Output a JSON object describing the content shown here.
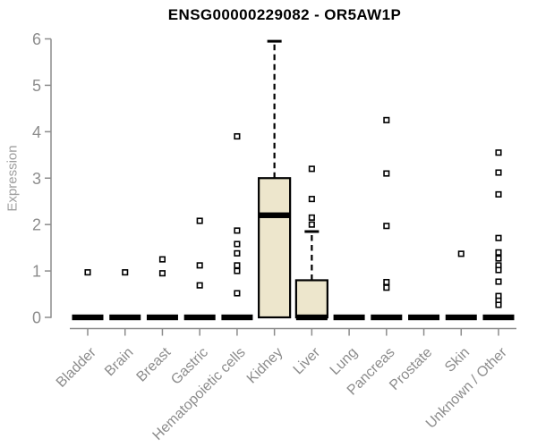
{
  "chart_data": {
    "type": "boxplot",
    "title": "ENSG00000229082 - OR5AW1P",
    "ylabel": "Expression",
    "xlabel": "",
    "ylim": [
      0,
      6
    ],
    "yticks": [
      0,
      1,
      2,
      3,
      4,
      5,
      6
    ],
    "grid": false,
    "legend": false,
    "categories": [
      "Bladder",
      "Brain",
      "Breast",
      "Gastric",
      "Hematopoietic cells",
      "Kidney",
      "Liver",
      "Lung",
      "Pancreas",
      "Prostate",
      "Skin",
      "Unknown / Other"
    ],
    "series": [
      {
        "name": "Bladder",
        "q1": 0,
        "median": 0,
        "q3": 0,
        "whisker_low": 0,
        "whisker_high": 0,
        "outliers": [
          0.97
        ]
      },
      {
        "name": "Brain",
        "q1": 0,
        "median": 0,
        "q3": 0,
        "whisker_low": 0,
        "whisker_high": 0,
        "outliers": [
          0.97
        ]
      },
      {
        "name": "Breast",
        "q1": 0,
        "median": 0,
        "q3": 0,
        "whisker_low": 0,
        "whisker_high": 0,
        "outliers": [
          1.25,
          0.95
        ]
      },
      {
        "name": "Gastric",
        "q1": 0,
        "median": 0,
        "q3": 0,
        "whisker_low": 0,
        "whisker_high": 0,
        "outliers": [
          2.08,
          1.12,
          0.69
        ]
      },
      {
        "name": "Hematopoietic cells",
        "q1": 0,
        "median": 0,
        "q3": 0,
        "whisker_low": 0,
        "whisker_high": 0,
        "outliers": [
          3.9,
          1.87,
          1.58,
          1.38,
          1.12,
          1.0,
          0.52
        ]
      },
      {
        "name": "Kidney",
        "q1": 0,
        "median": 2.2,
        "q3": 3.0,
        "whisker_low": 0,
        "whisker_high": 5.95,
        "outliers": []
      },
      {
        "name": "Liver",
        "q1": 0,
        "median": 0,
        "q3": 0.8,
        "whisker_low": 0,
        "whisker_high": 1.85,
        "outliers": [
          3.2,
          2.55,
          2.15,
          2.0
        ]
      },
      {
        "name": "Lung",
        "q1": 0,
        "median": 0,
        "q3": 0,
        "whisker_low": 0,
        "whisker_high": 0,
        "outliers": []
      },
      {
        "name": "Pancreas",
        "q1": 0,
        "median": 0,
        "q3": 0,
        "whisker_low": 0,
        "whisker_high": 0,
        "outliers": [
          4.25,
          3.1,
          1.97,
          0.76,
          0.64
        ]
      },
      {
        "name": "Prostate",
        "q1": 0,
        "median": 0,
        "q3": 0,
        "whisker_low": 0,
        "whisker_high": 0,
        "outliers": []
      },
      {
        "name": "Skin",
        "q1": 0,
        "median": 0,
        "q3": 0,
        "whisker_low": 0,
        "whisker_high": 0,
        "outliers": [
          1.37
        ]
      },
      {
        "name": "Unknown / Other",
        "q1": 0,
        "median": 0,
        "q3": 0,
        "whisker_low": 0,
        "whisker_high": 0,
        "outliers": [
          3.55,
          3.12,
          2.65,
          1.71,
          1.4,
          1.27,
          1.12,
          1.02,
          0.77,
          0.46,
          0.36,
          0.27
        ]
      }
    ]
  },
  "colors": {
    "background": "#FFFFFF",
    "title": "#000000",
    "box_fill": "#EDE6CC",
    "box_border": "#000000",
    "median": "#000000",
    "whisker": "#000000",
    "outlier_stroke": "#000000",
    "outlier_fill": "#FFFFFF",
    "axis": "#8C8C8C",
    "tick_label": "#8C8C8C",
    "axis_title": "#9E9E9E"
  }
}
